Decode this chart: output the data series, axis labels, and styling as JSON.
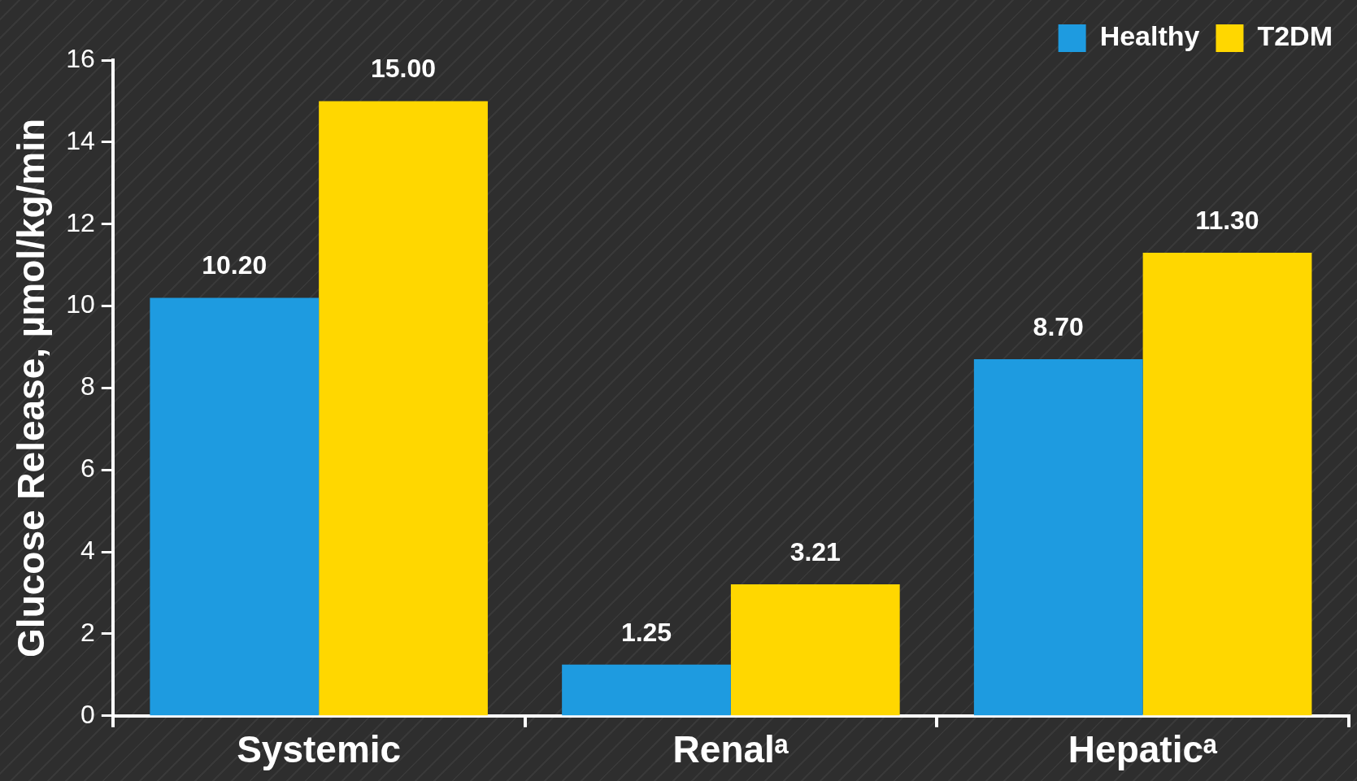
{
  "chart_data": {
    "type": "bar",
    "ylabel": "Glucose Release, µmol/kg/min",
    "categories": [
      "Systemic",
      "Renalᵃ",
      "Hepaticᵃ"
    ],
    "series": [
      {
        "name": "Healthy",
        "color": "#1e9be0",
        "values": [
          10.2,
          1.25,
          8.7
        ],
        "value_labels": [
          "10.20",
          "1.25",
          "8.70"
        ]
      },
      {
        "name": "T2DM",
        "color": "#ffd700",
        "values": [
          15.0,
          3.21,
          11.3
        ],
        "value_labels": [
          "15.00",
          "3.21",
          "11.30"
        ]
      }
    ],
    "ylim": [
      0,
      16
    ],
    "yticks": [
      0,
      2,
      4,
      6,
      8,
      10,
      12,
      14,
      16
    ],
    "grid": false,
    "legend": "top right"
  }
}
